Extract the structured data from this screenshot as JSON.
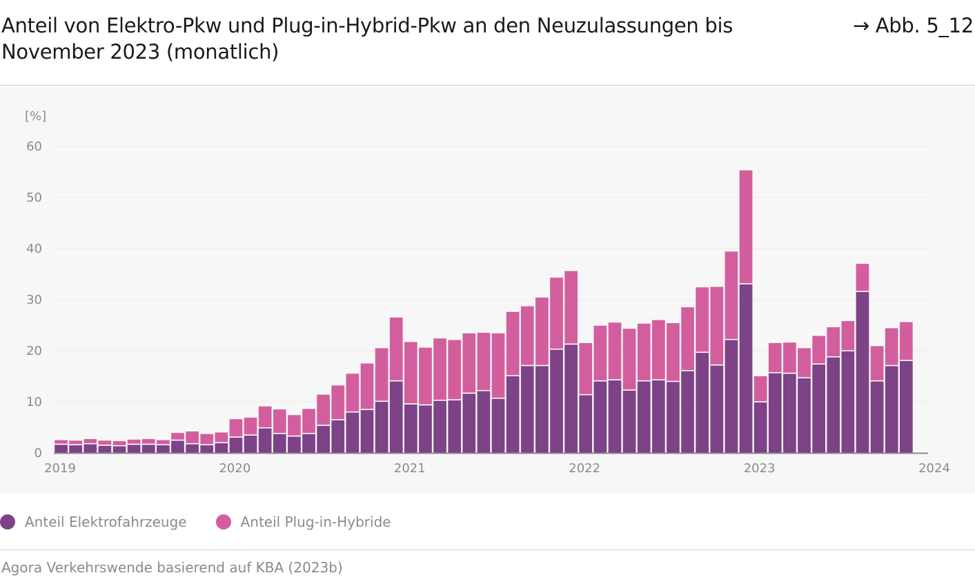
{
  "header": {
    "title": "Anteil von Elektro-Pkw und Plug-in-Hybrid-Pkw an den Neuzulassungen bis November 2023 (monatlich)",
    "figure_ref": "→ Abb. 5_12"
  },
  "legend": {
    "items": [
      {
        "label": "Anteil Elektrofahrzeuge",
        "color": "#7d4287"
      },
      {
        "label": "Anteil Plug-in-Hybride",
        "color": "#d35e9d"
      }
    ]
  },
  "source": "Agora Verkehrswende basierend auf KBA (2023b)",
  "chart_data": {
    "type": "bar",
    "stacked": true,
    "unit_label": "[%]",
    "ylim": [
      0,
      60
    ],
    "yticks": [
      0,
      10,
      20,
      30,
      40,
      50,
      60
    ],
    "xlim": [
      "2019-01",
      "2024-01"
    ],
    "xticks": [
      "2019",
      "2020",
      "2021",
      "2022",
      "2023",
      "2024"
    ],
    "grid": "horizontal",
    "legend_position": "bottom-left",
    "categories": [
      "2019-01",
      "2019-02",
      "2019-03",
      "2019-04",
      "2019-05",
      "2019-06",
      "2019-07",
      "2019-08",
      "2019-09",
      "2019-10",
      "2019-11",
      "2019-12",
      "2020-01",
      "2020-02",
      "2020-03",
      "2020-04",
      "2020-05",
      "2020-06",
      "2020-07",
      "2020-08",
      "2020-09",
      "2020-10",
      "2020-11",
      "2020-12",
      "2021-01",
      "2021-02",
      "2021-03",
      "2021-04",
      "2021-05",
      "2021-06",
      "2021-07",
      "2021-08",
      "2021-09",
      "2021-10",
      "2021-11",
      "2021-12",
      "2022-01",
      "2022-02",
      "2022-03",
      "2022-04",
      "2022-05",
      "2022-06",
      "2022-07",
      "2022-08",
      "2022-09",
      "2022-10",
      "2022-11",
      "2022-12",
      "2023-01",
      "2023-02",
      "2023-03",
      "2023-04",
      "2023-05",
      "2023-06",
      "2023-07",
      "2023-08",
      "2023-09",
      "2023-10",
      "2023-11"
    ],
    "series": [
      {
        "name": "Anteil Elektrofahrzeuge",
        "color": "#7d4287",
        "values": [
          1.6,
          1.5,
          1.7,
          1.4,
          1.3,
          1.6,
          1.6,
          1.5,
          2.4,
          1.7,
          1.5,
          1.9,
          3.0,
          3.4,
          4.8,
          3.7,
          3.2,
          3.7,
          5.3,
          6.4,
          7.9,
          8.4,
          10.0,
          14.0,
          9.5,
          9.3,
          10.2,
          10.3,
          11.6,
          12.1,
          10.6,
          15.0,
          17.0,
          17.0,
          20.2,
          21.2,
          11.3,
          14.0,
          14.2,
          12.2,
          14.0,
          14.2,
          13.9,
          16.0,
          19.6,
          17.1,
          22.1,
          33.0,
          9.9,
          15.6,
          15.5,
          14.6,
          17.3,
          18.7,
          19.9,
          31.5,
          14.0,
          17.0,
          18.0
        ]
      },
      {
        "name": "Anteil Plug-in-Hybride",
        "color": "#d35e9d",
        "values": [
          0.9,
          0.9,
          1.0,
          1.0,
          1.0,
          1.0,
          1.1,
          1.0,
          1.5,
          2.5,
          2.2,
          2.1,
          3.6,
          3.5,
          4.3,
          4.8,
          4.2,
          4.9,
          6.1,
          6.8,
          7.6,
          9.1,
          10.5,
          12.5,
          12.2,
          11.3,
          12.2,
          11.8,
          11.8,
          11.4,
          12.8,
          12.6,
          11.7,
          13.4,
          14.1,
          14.4,
          10.2,
          10.9,
          11.3,
          12.1,
          11.3,
          11.8,
          11.5,
          12.5,
          12.8,
          15.4,
          17.3,
          22.3,
          5.1,
          5.9,
          6.1,
          5.9,
          5.6,
          5.9,
          5.9,
          5.5,
          6.9,
          7.4,
          7.6
        ]
      }
    ]
  }
}
